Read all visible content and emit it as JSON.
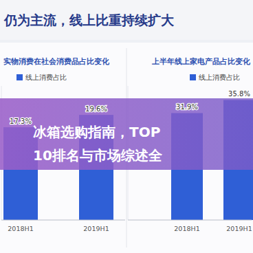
{
  "header": {
    "title": "仍为主流，线上比重持续扩大"
  },
  "banner": {
    "lines": [
      "冰箱选购指南，TOP",
      "10排名与市场综述全"
    ]
  },
  "chart_data": [
    {
      "type": "bar",
      "title": "实物消费在社会消费品占比变化",
      "categories": [
        "2018H1",
        "2019H1"
      ],
      "series": [
        {
          "name": "线上消费占比",
          "color": "#2f5fd6",
          "values": [
            17.3,
            19.6
          ],
          "value_labels": [
            "17.3%",
            "19.6%"
          ]
        }
      ],
      "ylim": [
        0,
        25
      ],
      "data_labels": true,
      "tick_labels": "x",
      "grid": false
    },
    {
      "type": "bar",
      "title": "上半年线上家电产品占比变化",
      "categories": [
        "2018H1",
        "2019H1"
      ],
      "series": [
        {
          "name": "线上消费占比",
          "color": "#2f5fd6",
          "values": [
            31.9,
            35.8
          ],
          "value_labels": [
            "31.9%",
            "35.8%"
          ]
        }
      ],
      "ylim": [
        0,
        40
      ],
      "data_labels": true,
      "tick_labels": "x",
      "grid": false
    }
  ]
}
